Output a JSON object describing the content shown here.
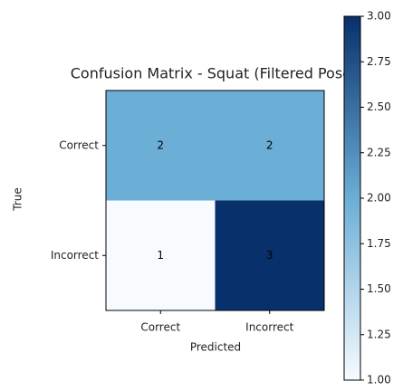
{
  "chart_data": {
    "type": "heatmap",
    "title": "Confusion Matrix - Squat (Filtered Pose)",
    "xlabel": "Predicted",
    "ylabel": "True",
    "x_categories": [
      "Correct",
      "Incorrect"
    ],
    "y_categories": [
      "Correct",
      "Incorrect"
    ],
    "values": [
      [
        2,
        2
      ],
      [
        1,
        3
      ]
    ],
    "colormap": [
      "#f7fbff",
      "#6baed6",
      "#08306b"
    ],
    "clim": [
      1,
      3
    ],
    "cticks": [
      {
        "value": 1,
        "label": "1.00"
      },
      {
        "value": 1.25,
        "label": "1.25"
      },
      {
        "value": 1.5,
        "label": "1.50"
      },
      {
        "value": 1.75,
        "label": "1.75"
      },
      {
        "value": 2,
        "label": "2.00"
      },
      {
        "value": 2.25,
        "label": "2.25"
      },
      {
        "value": 2.5,
        "label": "2.50"
      },
      {
        "value": 2.75,
        "label": "2.75"
      },
      {
        "value": 3,
        "label": "3.00"
      }
    ]
  }
}
